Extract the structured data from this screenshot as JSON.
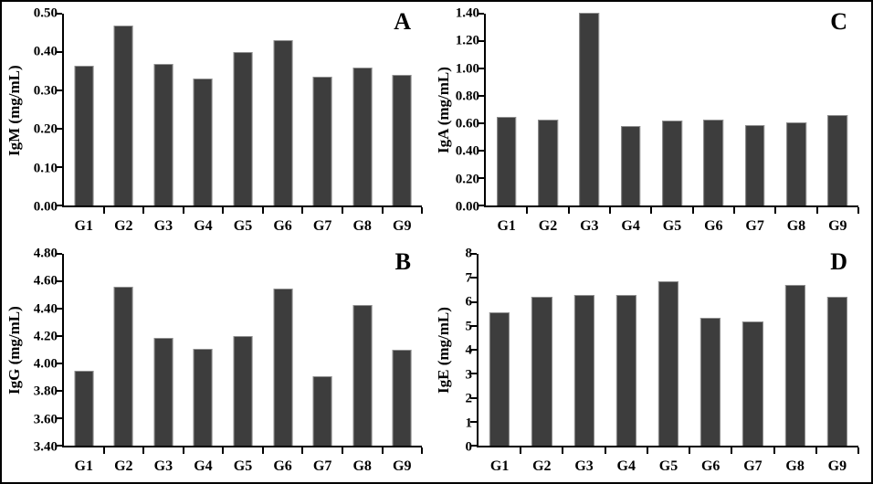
{
  "colors": {
    "bar_fill": "#3d3d3d",
    "bar_edge": "#8f8f8f",
    "axis": "#000000",
    "text": "#000000",
    "background": "#ffffff",
    "frame_border": "#000000"
  },
  "chart_data": [
    {
      "type": "bar",
      "panel_letter": "A",
      "ylabel": "IgM (mg/mL)",
      "xlabel": "",
      "categories": [
        "G1",
        "G2",
        "G3",
        "G4",
        "G5",
        "G6",
        "G7",
        "G8",
        "G9"
      ],
      "values": [
        0.365,
        0.47,
        0.37,
        0.33,
        0.4,
        0.43,
        0.335,
        0.36,
        0.34
      ],
      "ylim": [
        0.0,
        0.5
      ],
      "yticks": [
        "0.50",
        "0.40",
        "0.30",
        "0.20",
        "0.10",
        "0.00"
      ],
      "grid": "off",
      "legend": "none"
    },
    {
      "type": "bar",
      "panel_letter": "C",
      "ylabel": "IgA (mg/mL)",
      "xlabel": "",
      "categories": [
        "G1",
        "G2",
        "G3",
        "G4",
        "G5",
        "G6",
        "G7",
        "G8",
        "G9"
      ],
      "values": [
        0.65,
        0.63,
        1.41,
        0.58,
        0.62,
        0.63,
        0.59,
        0.61,
        0.66
      ],
      "ylim": [
        0.0,
        1.4
      ],
      "yticks": [
        "1.40",
        "1.20",
        "1.00",
        "0.80",
        "0.60",
        "0.40",
        "0.20",
        "0.00"
      ],
      "grid": "off",
      "legend": "none"
    },
    {
      "type": "bar",
      "panel_letter": "B",
      "ylabel": "IgG (mg/mL)",
      "xlabel": "",
      "categories": [
        "G1",
        "G2",
        "G3",
        "G4",
        "G5",
        "G6",
        "G7",
        "G8",
        "G9"
      ],
      "values": [
        3.95,
        4.56,
        4.19,
        4.11,
        4.2,
        4.55,
        3.91,
        4.43,
        4.1
      ],
      "ylim": [
        3.4,
        4.8
      ],
      "yticks": [
        "4.80",
        "4.60",
        "4.40",
        "4.20",
        "4.00",
        "3.80",
        "3.60",
        "3.40"
      ],
      "grid": "off",
      "legend": "none"
    },
    {
      "type": "bar",
      "panel_letter": "D",
      "ylabel": "IgE (mg/mL)",
      "xlabel": "",
      "categories": [
        "G1",
        "G2",
        "G3",
        "G4",
        "G5",
        "G6",
        "G7",
        "G8",
        "G9"
      ],
      "values": [
        5.55,
        6.2,
        6.3,
        6.3,
        6.85,
        5.35,
        5.2,
        6.7,
        6.2
      ],
      "ylim": [
        0,
        8
      ],
      "yticks": [
        "8",
        "7",
        "6",
        "5",
        "4",
        "3",
        "2",
        "1",
        "0"
      ],
      "grid": "off",
      "legend": "none"
    }
  ]
}
